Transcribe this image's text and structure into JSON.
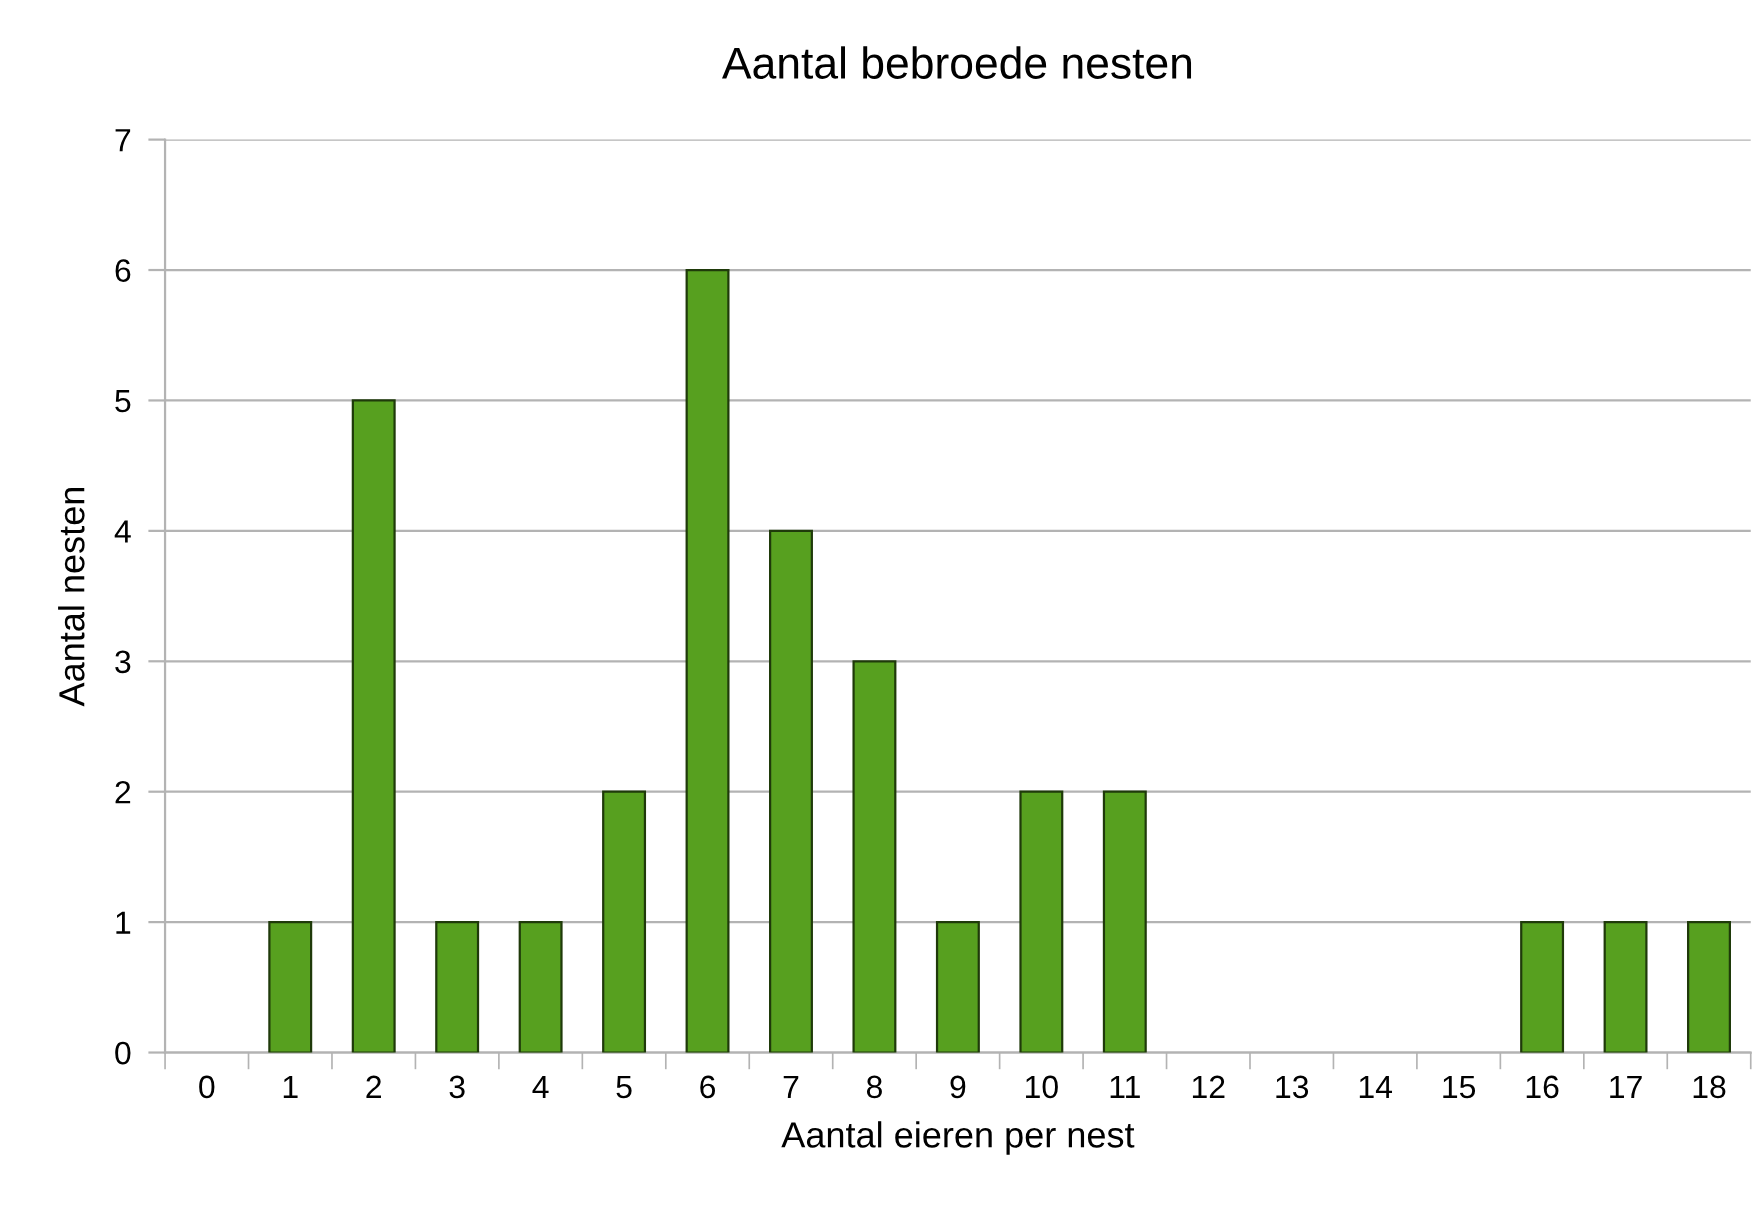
{
  "chart_data": {
    "type": "bar",
    "title": "Aantal bebroede nesten",
    "xlabel": "Aantal eieren per nest",
    "ylabel": "Aantal nesten",
    "categories": [
      "0",
      "1",
      "2",
      "3",
      "4",
      "5",
      "6",
      "7",
      "8",
      "9",
      "10",
      "11",
      "12",
      "13",
      "14",
      "15",
      "16",
      "17",
      "18"
    ],
    "values": [
      0,
      1,
      5,
      1,
      1,
      2,
      6,
      4,
      3,
      1,
      2,
      2,
      0,
      0,
      0,
      0,
      1,
      1,
      1
    ],
    "color": "#57a01f",
    "ylim": [
      0,
      7
    ],
    "yticks": [
      0,
      1,
      2,
      3,
      4,
      5,
      6,
      7
    ],
    "grid": "y"
  }
}
